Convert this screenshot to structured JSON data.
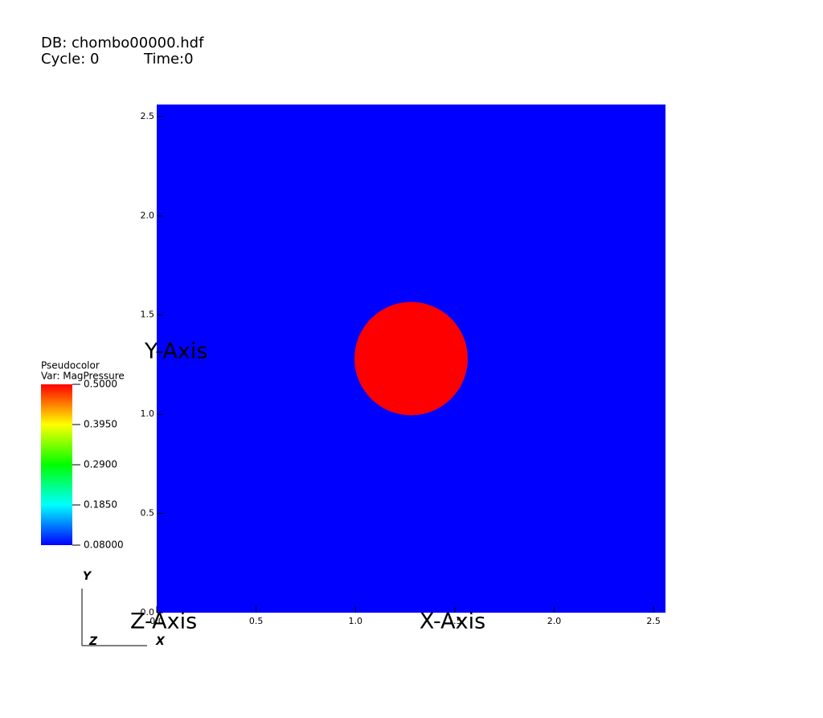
{
  "db_label": "DB: chombo00000.hdf",
  "cycle_label": "Cycle: 0",
  "time_label": "Time:0",
  "chart_data": {
    "type": "pseudocolor",
    "plot_name": "Pseudocolor",
    "variable": "Var: MagPressure",
    "x_label": "X-Axis",
    "y_label": "Y-Axis",
    "z_label": "Z-Axis",
    "xlim": [
      0,
      2.56
    ],
    "ylim": [
      0,
      2.56
    ],
    "xticks": [
      {
        "value": 0,
        "label": "0.0"
      },
      0.5,
      {
        "value": 1,
        "label": "1.0"
      },
      1.5,
      {
        "value": 2,
        "label": "2.0"
      },
      2.5
    ],
    "yticks": [
      {
        "value": 0,
        "label": "0.0"
      },
      0.5,
      {
        "value": 1,
        "label": "1.0"
      },
      1.5,
      {
        "value": 2,
        "label": "2.0"
      },
      2.5
    ],
    "background_value": 0.08,
    "circle": {
      "center": [
        1.28,
        1.28
      ],
      "radius": 0.285,
      "value": 0.5
    },
    "colorbar": {
      "min": 0.08,
      "max": 0.5,
      "ticks": [
        {
          "value": 0.08,
          "label": "0.08000"
        },
        {
          "value": 0.185,
          "label": "0.1850"
        },
        {
          "value": 0.29,
          "label": "0.2900"
        },
        {
          "value": 0.395,
          "label": "0.3950"
        },
        {
          "value": 0.5,
          "label": "0.5000"
        }
      ]
    },
    "colormap": [
      "#0000ff",
      "#00ffff",
      "#00ff00",
      "#ffff00",
      "#ff0000"
    ],
    "triad": {
      "y": "Y",
      "z": "Z",
      "x": "X"
    }
  }
}
